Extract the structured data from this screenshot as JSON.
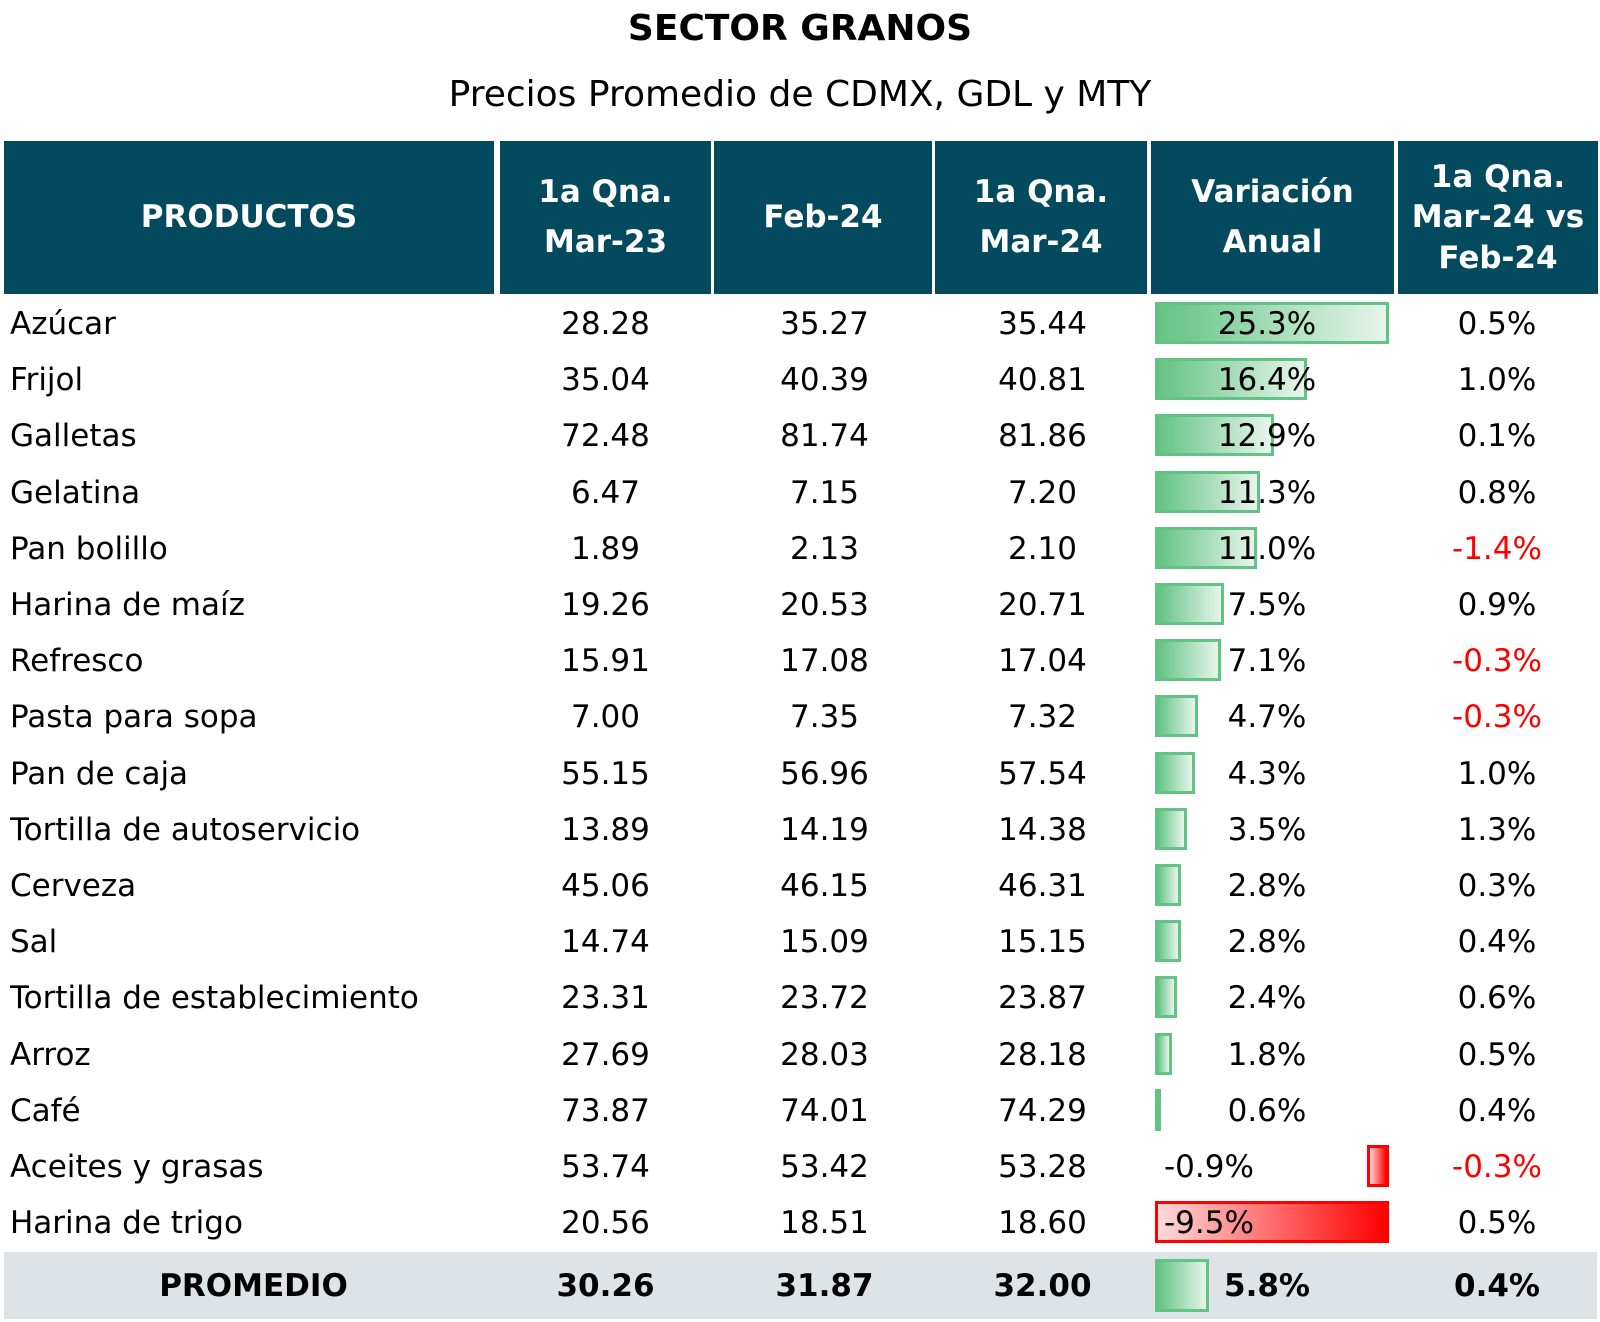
{
  "title": "SECTOR GRANOS",
  "subtitle": "Precios Promedio de CDMX, GDL y MTY",
  "headers": {
    "productos": "PRODUCTOS",
    "mar23": "1a Qna. Mar-23",
    "feb24": "Feb-24",
    "mar24": "1a Qna. Mar-24",
    "variacion": "Variación Anual",
    "vsfeb": "1a Qna. Mar-24 vs Feb-24"
  },
  "colors": {
    "header_bg": "#034a5e",
    "positive_bar": "#63c384",
    "negative_bar": "#ff0000",
    "negative_text": "#ff0000",
    "total_row_bg": "#dde3e6"
  },
  "rows": [
    {
      "producto": "Azúcar",
      "mar23": "28.28",
      "feb24": "35.27",
      "mar24": "35.44",
      "variacion": "25.3%",
      "var_value": 25.3,
      "vsfeb": "0.5%",
      "vs_value": 0.5
    },
    {
      "producto": "Frijol",
      "mar23": "35.04",
      "feb24": "40.39",
      "mar24": "40.81",
      "variacion": "16.4%",
      "var_value": 16.4,
      "vsfeb": "1.0%",
      "vs_value": 1.0
    },
    {
      "producto": "Galletas",
      "mar23": "72.48",
      "feb24": "81.74",
      "mar24": "81.86",
      "variacion": "12.9%",
      "var_value": 12.9,
      "vsfeb": "0.1%",
      "vs_value": 0.1
    },
    {
      "producto": "Gelatina",
      "mar23": "6.47",
      "feb24": "7.15",
      "mar24": "7.20",
      "variacion": "11.3%",
      "var_value": 11.3,
      "vsfeb": "0.8%",
      "vs_value": 0.8
    },
    {
      "producto": "Pan bolillo",
      "mar23": "1.89",
      "feb24": "2.13",
      "mar24": "2.10",
      "variacion": "11.0%",
      "var_value": 11.0,
      "vsfeb": "-1.4%",
      "vs_value": -1.4
    },
    {
      "producto": "Harina de maíz",
      "mar23": "19.26",
      "feb24": "20.53",
      "mar24": "20.71",
      "variacion": "7.5%",
      "var_value": 7.5,
      "vsfeb": "0.9%",
      "vs_value": 0.9
    },
    {
      "producto": "Refresco",
      "mar23": "15.91",
      "feb24": "17.08",
      "mar24": "17.04",
      "variacion": "7.1%",
      "var_value": 7.1,
      "vsfeb": "-0.3%",
      "vs_value": -0.3
    },
    {
      "producto": "Pasta para sopa",
      "mar23": "7.00",
      "feb24": "7.35",
      "mar24": "7.32",
      "variacion": "4.7%",
      "var_value": 4.7,
      "vsfeb": "-0.3%",
      "vs_value": -0.3
    },
    {
      "producto": "Pan de caja",
      "mar23": "55.15",
      "feb24": "56.96",
      "mar24": "57.54",
      "variacion": "4.3%",
      "var_value": 4.3,
      "vsfeb": "1.0%",
      "vs_value": 1.0
    },
    {
      "producto": "Tortilla de autoservicio",
      "mar23": "13.89",
      "feb24": "14.19",
      "mar24": "14.38",
      "variacion": "3.5%",
      "var_value": 3.5,
      "vsfeb": "1.3%",
      "vs_value": 1.3
    },
    {
      "producto": "Cerveza",
      "mar23": "45.06",
      "feb24": "46.15",
      "mar24": "46.31",
      "variacion": "2.8%",
      "var_value": 2.8,
      "vsfeb": "0.3%",
      "vs_value": 0.3
    },
    {
      "producto": "Sal",
      "mar23": "14.74",
      "feb24": "15.09",
      "mar24": "15.15",
      "variacion": "2.8%",
      "var_value": 2.8,
      "vsfeb": "0.4%",
      "vs_value": 0.4
    },
    {
      "producto": "Tortilla de establecimiento",
      "mar23": "23.31",
      "feb24": "23.72",
      "mar24": "23.87",
      "variacion": "2.4%",
      "var_value": 2.4,
      "vsfeb": "0.6%",
      "vs_value": 0.6
    },
    {
      "producto": "Arroz",
      "mar23": "27.69",
      "feb24": "28.03",
      "mar24": "28.18",
      "variacion": "1.8%",
      "var_value": 1.8,
      "vsfeb": "0.5%",
      "vs_value": 0.5
    },
    {
      "producto": "Café",
      "mar23": "73.87",
      "feb24": "74.01",
      "mar24": "74.29",
      "variacion": "0.6%",
      "var_value": 0.6,
      "vsfeb": "0.4%",
      "vs_value": 0.4
    },
    {
      "producto": "Aceites y grasas",
      "mar23": "53.74",
      "feb24": "53.42",
      "mar24": "53.28",
      "variacion": "-0.9%",
      "var_value": -0.9,
      "vsfeb": "-0.3%",
      "vs_value": -0.3
    },
    {
      "producto": "Harina de trigo",
      "mar23": "20.56",
      "feb24": "18.51",
      "mar24": "18.60",
      "variacion": "-9.5%",
      "var_value": -9.5,
      "vsfeb": "0.5%",
      "vs_value": 0.5
    }
  ],
  "promedio": {
    "producto": "PROMEDIO",
    "mar23": "30.26",
    "feb24": "31.87",
    "mar24": "32.00",
    "variacion": "5.8%",
    "var_value": 5.8,
    "vsfeb": "0.4%",
    "vs_value": 0.4
  }
}
